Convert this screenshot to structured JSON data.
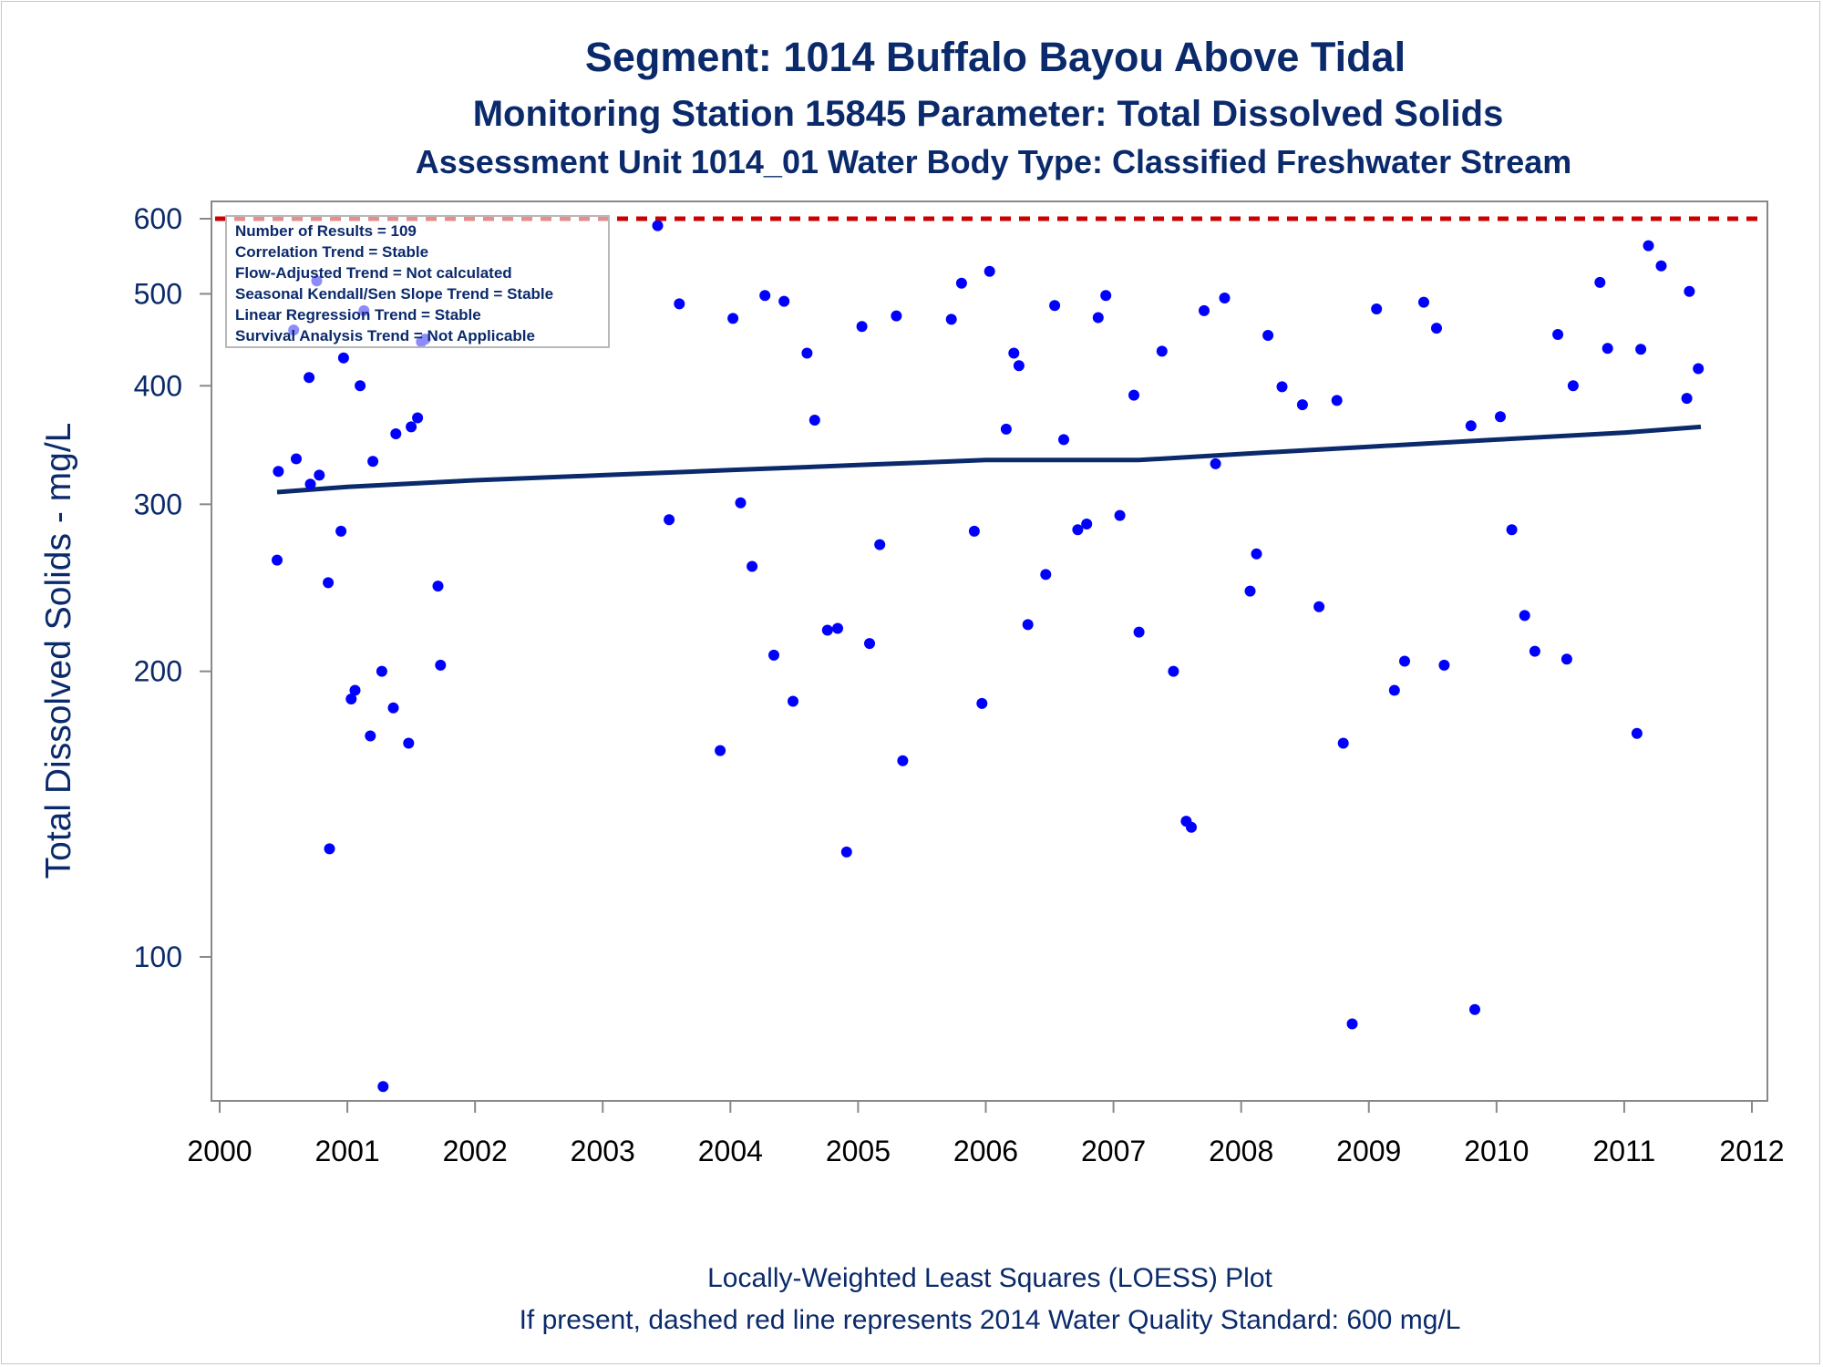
{
  "titles": [
    "Segment: 1014  Buffalo Bayou Above Tidal",
    "Monitoring Station 15845 Parameter: Total Dissolved Solids",
    "Assessment Unit 1014_01   Water Body Type: Classified Freshwater Stream"
  ],
  "footnotes": [
    "Locally-Weighted Least Squares (LOESS) Plot",
    "If present, dashed red line represents 2014 Water Quality Standard: 600   mg/L"
  ],
  "stats_box": [
    "Number of Results = 109",
    "Correlation Trend = Stable",
    "Flow-Adjusted Trend = Not calculated",
    "Seasonal Kendall/Sen Slope Trend = Stable",
    "Linear Regression Trend = Stable",
    "Survival Analysis Trend = Not Applicable"
  ],
  "colors": {
    "text": "#0b2a6b",
    "points": "#0000ff",
    "loess": "#0b2a6b",
    "standard": "#cc0000",
    "axes": "#888888"
  },
  "chart_data": {
    "type": "scatter",
    "title": "Segment: 1014  Buffalo Bayou Above Tidal",
    "ylabel": "Total Dissolved Solids - mg/L",
    "xlabel": "",
    "y_scale": "log",
    "xlim": [
      2000,
      2012.2
    ],
    "ylim": [
      70,
      620
    ],
    "x_ticks": [
      "2000",
      "2001",
      "2002",
      "2003",
      "2004",
      "2005",
      "2006",
      "2007",
      "2008",
      "2009",
      "2010",
      "2011",
      "2012"
    ],
    "y_ticks": [
      100,
      200,
      300,
      400,
      500,
      600
    ],
    "standard": {
      "value": 600,
      "units": "mg/L",
      "style": "dashed"
    },
    "grid": false,
    "legend": "top-left",
    "series": [
      {
        "kind": "points",
        "points": [
          [
            2000.45,
            262
          ],
          [
            2000.46,
            325
          ],
          [
            2000.58,
            458
          ],
          [
            2000.6,
            335
          ],
          [
            2000.7,
            408
          ],
          [
            2000.71,
            315
          ],
          [
            2000.76,
            516
          ],
          [
            2000.78,
            322
          ],
          [
            2000.85,
            248
          ],
          [
            2000.86,
            130
          ],
          [
            2000.95,
            281
          ],
          [
            2000.97,
            428
          ],
          [
            2001.03,
            187
          ],
          [
            2001.06,
            191
          ],
          [
            2001.1,
            400
          ],
          [
            2001.13,
            480
          ],
          [
            2001.18,
            171
          ],
          [
            2001.2,
            333
          ],
          [
            2001.27,
            200
          ],
          [
            2001.28,
            73
          ],
          [
            2001.36,
            183
          ],
          [
            2001.38,
            356
          ],
          [
            2001.48,
            168
          ],
          [
            2001.5,
            362
          ],
          [
            2001.55,
            370
          ],
          [
            2001.58,
            445
          ],
          [
            2001.61,
            448
          ],
          [
            2001.71,
            246
          ],
          [
            2001.73,
            203
          ],
          [
            2003.43,
            590
          ],
          [
            2003.52,
            289
          ],
          [
            2003.6,
            488
          ],
          [
            2003.92,
            165
          ],
          [
            2004.02,
            471
          ],
          [
            2004.08,
            301
          ],
          [
            2004.17,
            258
          ],
          [
            2004.27,
            498
          ],
          [
            2004.34,
            208
          ],
          [
            2004.42,
            491
          ],
          [
            2004.49,
            186
          ],
          [
            2004.6,
            433
          ],
          [
            2004.66,
            368
          ],
          [
            2004.76,
            221
          ],
          [
            2004.84,
            222
          ],
          [
            2004.91,
            129
          ],
          [
            2005.03,
            462
          ],
          [
            2005.09,
            214
          ],
          [
            2005.17,
            272
          ],
          [
            2005.3,
            474
          ],
          [
            2005.35,
            161
          ],
          [
            2005.73,
            470
          ],
          [
            2005.81,
            513
          ],
          [
            2005.91,
            281
          ],
          [
            2005.97,
            185
          ],
          [
            2006.03,
            528
          ],
          [
            2006.16,
            360
          ],
          [
            2006.22,
            433
          ],
          [
            2006.26,
            420
          ],
          [
            2006.33,
            224
          ],
          [
            2006.47,
            253
          ],
          [
            2006.54,
            486
          ],
          [
            2006.61,
            351
          ],
          [
            2006.72,
            282
          ],
          [
            2006.79,
            286
          ],
          [
            2006.88,
            472
          ],
          [
            2006.94,
            498
          ],
          [
            2007.05,
            292
          ],
          [
            2007.16,
            391
          ],
          [
            2007.2,
            220
          ],
          [
            2007.38,
            435
          ],
          [
            2007.47,
            200
          ],
          [
            2007.57,
            139
          ],
          [
            2007.61,
            137
          ],
          [
            2007.71,
            480
          ],
          [
            2007.8,
            331
          ],
          [
            2007.87,
            495
          ],
          [
            2008.07,
            243
          ],
          [
            2008.12,
            266
          ],
          [
            2008.21,
            452
          ],
          [
            2008.32,
            399
          ],
          [
            2008.48,
            382
          ],
          [
            2008.61,
            234
          ],
          [
            2008.75,
            386
          ],
          [
            2008.8,
            168
          ],
          [
            2008.87,
            85
          ],
          [
            2009.06,
            482
          ],
          [
            2009.2,
            191
          ],
          [
            2009.28,
            205
          ],
          [
            2009.43,
            490
          ],
          [
            2009.53,
            460
          ],
          [
            2009.59,
            203
          ],
          [
            2009.8,
            363
          ],
          [
            2009.83,
            88
          ],
          [
            2010.03,
            371
          ],
          [
            2010.12,
            282
          ],
          [
            2010.22,
            229
          ],
          [
            2010.3,
            210
          ],
          [
            2010.48,
            453
          ],
          [
            2010.55,
            206
          ],
          [
            2010.6,
            400
          ],
          [
            2010.81,
            514
          ],
          [
            2010.87,
            438
          ],
          [
            2011.1,
            172
          ],
          [
            2011.13,
            437
          ],
          [
            2011.19,
            562
          ],
          [
            2011.29,
            535
          ],
          [
            2011.49,
            388
          ],
          [
            2011.51,
            503
          ],
          [
            2011.58,
            417
          ]
        ]
      },
      {
        "kind": "loess",
        "points": [
          [
            2000.45,
            309
          ],
          [
            2001.0,
            313
          ],
          [
            2002.0,
            318
          ],
          [
            2003.0,
            322
          ],
          [
            2004.0,
            326
          ],
          [
            2005.0,
            330
          ],
          [
            2006.0,
            334
          ],
          [
            2007.0,
            334
          ],
          [
            2007.2,
            334
          ],
          [
            2008.0,
            339
          ],
          [
            2009.0,
            345
          ],
          [
            2010.0,
            351
          ],
          [
            2011.0,
            357
          ],
          [
            2011.6,
            362
          ]
        ]
      }
    ]
  }
}
